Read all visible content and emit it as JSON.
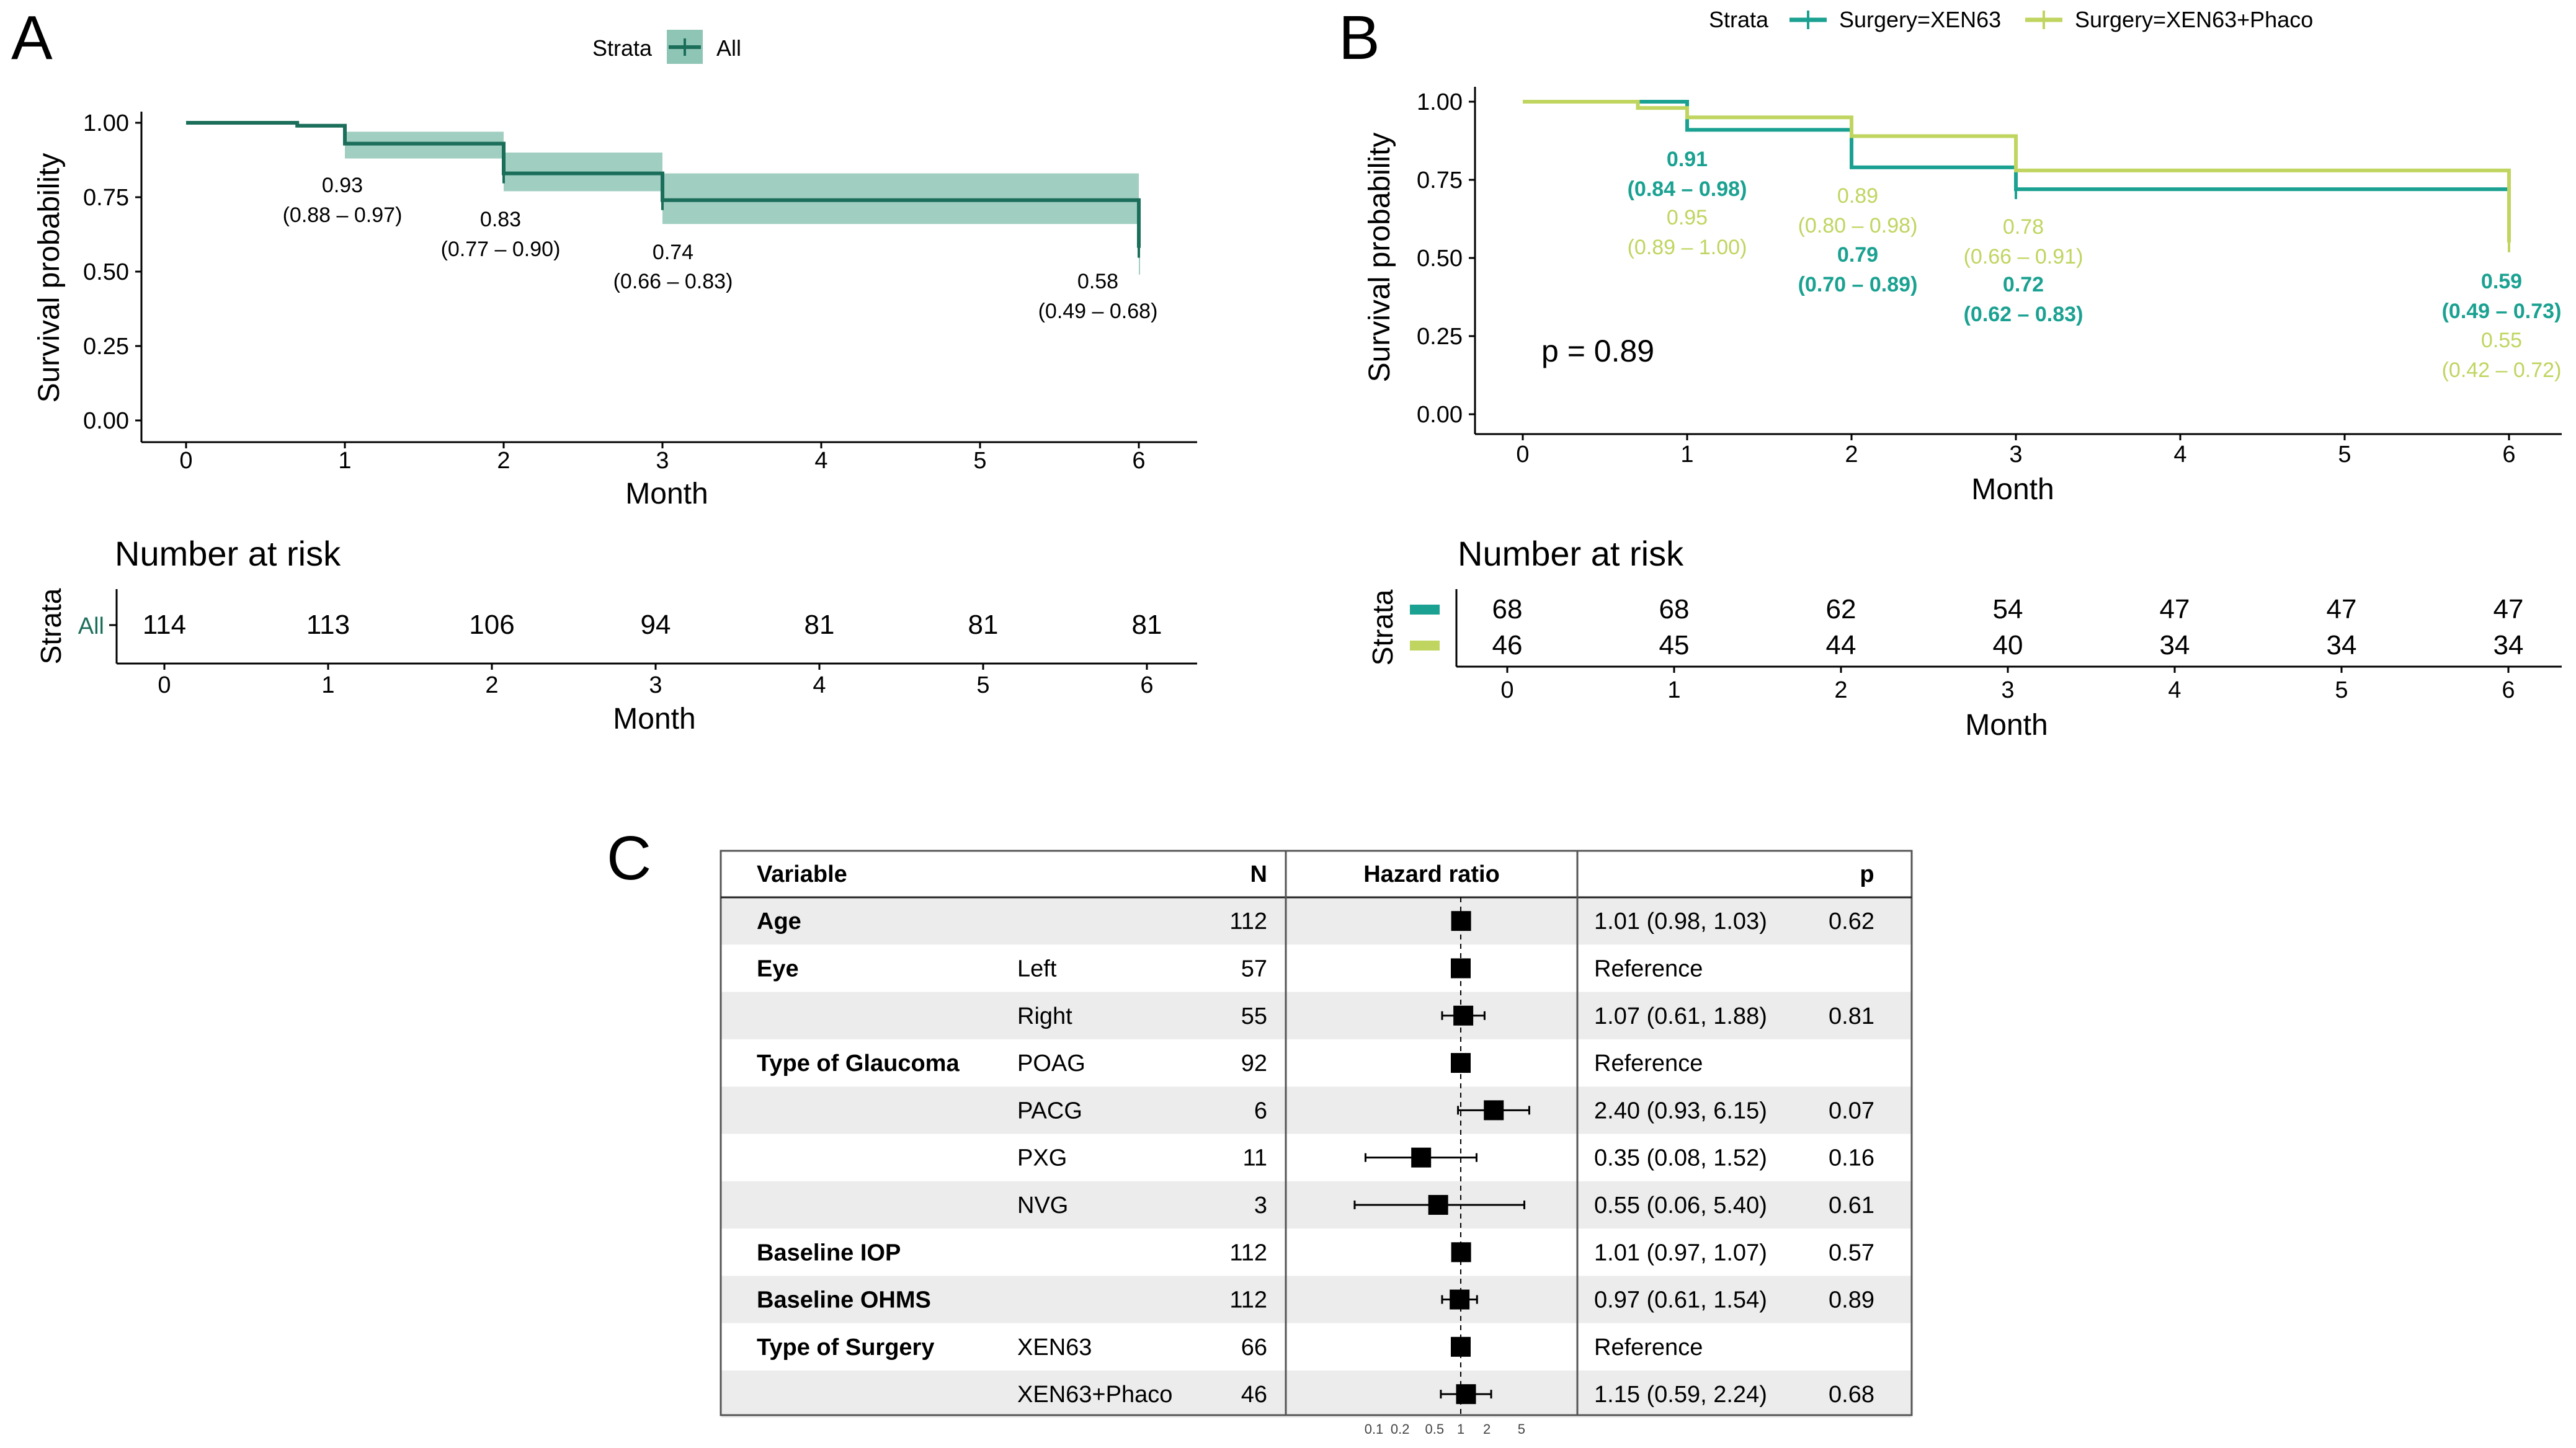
{
  "panels": {
    "a": "A",
    "b": "B",
    "c": "C"
  },
  "colors": {
    "all": "#1b6e5a",
    "all_band": "#8fc5b5",
    "xen": "#1aa191",
    "phaco": "#bfd560",
    "row_shade": "#ececec"
  },
  "chart_data": [
    {
      "type": "line",
      "subtype": "kaplan-meier",
      "panel": "A",
      "legend_title": "Strata",
      "legend_labels": [
        "All"
      ],
      "legend_placement": "top",
      "xlabel": "Month",
      "ylabel": "Survival probability",
      "xlim": [
        0,
        6
      ],
      "ylim": [
        0,
        1
      ],
      "x_ticks": [
        "0",
        "1",
        "2",
        "3",
        "4",
        "5",
        "6"
      ],
      "y_ticks": [
        "0.00",
        "0.25",
        "0.50",
        "0.75",
        "1.00"
      ],
      "series": [
        {
          "name": "All",
          "steps": [
            [
              0,
              1.0
            ],
            [
              0.7,
              0.99
            ],
            [
              1,
              0.93
            ],
            [
              2,
              0.83
            ],
            [
              3,
              0.74
            ],
            [
              6,
              0.58
            ]
          ],
          "ci_upper": [
            [
              1,
              0.97
            ],
            [
              2,
              0.9
            ],
            [
              3,
              0.83
            ],
            [
              6,
              0.68
            ]
          ],
          "ci_lower": [
            [
              1,
              0.88
            ],
            [
              2,
              0.77
            ],
            [
              3,
              0.66
            ],
            [
              6,
              0.49
            ]
          ],
          "censor_marks": [
            [
              2,
              0.83
            ],
            [
              3,
              0.74
            ],
            [
              6,
              0.58
            ]
          ]
        }
      ],
      "annotations": [
        {
          "x": 1,
          "y": 0.93,
          "value": "0.93",
          "ci": "(0.88 – 0.97)"
        },
        {
          "x": 2,
          "y": 0.83,
          "value": "0.83",
          "ci": "(0.77 – 0.90)"
        },
        {
          "x": 3,
          "y": 0.74,
          "value": "0.74",
          "ci": "(0.66 – 0.83)"
        },
        {
          "x": 6,
          "y": 0.58,
          "value": "0.58",
          "ci": "(0.49 – 0.68)"
        }
      ],
      "risk_table": {
        "title": "Number at risk",
        "ylabel": "Strata",
        "xlabel": "Month",
        "x_ticks": [
          "0",
          "1",
          "2",
          "3",
          "4",
          "5",
          "6"
        ],
        "rows": [
          {
            "label": "All",
            "values": [
              "114",
              "113",
              "106",
              "94",
              "81",
              "81",
              "81"
            ]
          }
        ]
      }
    },
    {
      "type": "line",
      "subtype": "kaplan-meier",
      "panel": "B",
      "legend_title": "Strata",
      "legend_labels": [
        "Surgery=XEN63",
        "Surgery=XEN63+Phaco"
      ],
      "legend_placement": "top",
      "xlabel": "Month",
      "ylabel": "Survival probability",
      "xlim": [
        0,
        6
      ],
      "ylim": [
        0,
        1
      ],
      "x_ticks": [
        "0",
        "1",
        "2",
        "3",
        "4",
        "5",
        "6"
      ],
      "y_ticks": [
        "0.00",
        "0.25",
        "0.50",
        "0.75",
        "1.00"
      ],
      "pvalue": "p = 0.89",
      "series": [
        {
          "name": "Surgery=XEN63",
          "steps": [
            [
              0,
              1.0
            ],
            [
              1,
              0.91
            ],
            [
              2,
              0.79
            ],
            [
              3,
              0.72
            ],
            [
              6,
              0.59
            ]
          ],
          "censor_marks": [
            [
              3,
              0.72
            ],
            [
              6,
              0.59
            ]
          ]
        },
        {
          "name": "Surgery=XEN63+Phaco",
          "steps": [
            [
              0,
              1.0
            ],
            [
              0.7,
              0.98
            ],
            [
              1,
              0.95
            ],
            [
              2,
              0.89
            ],
            [
              3,
              0.78
            ],
            [
              6,
              0.55
            ]
          ],
          "censor_marks": [
            [
              6,
              0.55
            ]
          ]
        }
      ],
      "annotations": [
        {
          "series": 0,
          "value": "0.91",
          "ci": "(0.84 – 0.98)"
        },
        {
          "series": 1,
          "value": "0.95",
          "ci": "(0.89 – 1.00)"
        },
        {
          "series": 1,
          "value": "0.89",
          "ci": "(0.80 – 0.98)"
        },
        {
          "series": 0,
          "value": "0.79",
          "ci": "(0.70 – 0.89)"
        },
        {
          "series": 1,
          "value": "0.78",
          "ci": "(0.66 – 0.91)"
        },
        {
          "series": 0,
          "value": "0.72",
          "ci": "(0.62 – 0.83)"
        },
        {
          "series": 0,
          "value": "0.59",
          "ci": "(0.49 – 0.73)"
        },
        {
          "series": 1,
          "value": "0.55",
          "ci": "(0.42 – 0.72)"
        }
      ],
      "risk_table": {
        "title": "Number at risk",
        "ylabel": "Strata",
        "xlabel": "Month",
        "x_ticks": [
          "0",
          "1",
          "2",
          "3",
          "4",
          "5",
          "6"
        ],
        "rows": [
          {
            "series": 0,
            "values": [
              "68",
              "68",
              "62",
              "54",
              "47",
              "47",
              "47"
            ]
          },
          {
            "series": 1,
            "values": [
              "46",
              "45",
              "44",
              "40",
              "34",
              "34",
              "34"
            ]
          }
        ]
      }
    },
    {
      "type": "forest",
      "panel": "C",
      "headers": {
        "variable": "Variable",
        "n": "N",
        "hr": "Hazard ratio",
        "p": "p"
      },
      "x_scale": "log",
      "x_ticks": [
        "0.1",
        "0.2",
        "0.5",
        "1",
        "2",
        "5"
      ],
      "reference_line": 1,
      "rows": [
        {
          "variable": "Age",
          "level": "",
          "n": "112",
          "hr": 1.01,
          "lo": 0.98,
          "hi": 1.03,
          "text": "1.01 (0.98, 1.03)",
          "p": "0.62"
        },
        {
          "variable": "Eye",
          "level": "Left",
          "n": "57",
          "hr": 1.0,
          "text": "Reference",
          "p": ""
        },
        {
          "variable": "",
          "level": "Right",
          "n": "55",
          "hr": 1.07,
          "lo": 0.61,
          "hi": 1.88,
          "text": "1.07 (0.61, 1.88)",
          "p": "0.81"
        },
        {
          "variable": "Type of Glaucoma",
          "level": "POAG",
          "n": "92",
          "hr": 1.0,
          "text": "Reference",
          "p": ""
        },
        {
          "variable": "",
          "level": "PACG",
          "n": "6",
          "hr": 2.4,
          "lo": 0.93,
          "hi": 6.15,
          "text": "2.40 (0.93, 6.15)",
          "p": "0.07"
        },
        {
          "variable": "",
          "level": "PXG",
          "n": "11",
          "hr": 0.35,
          "lo": 0.08,
          "hi": 1.52,
          "text": "0.35 (0.08, 1.52)",
          "p": "0.16"
        },
        {
          "variable": "",
          "level": "NVG",
          "n": "3",
          "hr": 0.55,
          "lo": 0.06,
          "hi": 5.4,
          "text": "0.55 (0.06, 5.40)",
          "p": "0.61"
        },
        {
          "variable": "Baseline IOP",
          "level": "",
          "n": "112",
          "hr": 1.01,
          "lo": 0.97,
          "hi": 1.07,
          "text": "1.01 (0.97, 1.07)",
          "p": "0.57"
        },
        {
          "variable": "Baseline OHMS",
          "level": "",
          "n": "112",
          "hr": 0.97,
          "lo": 0.61,
          "hi": 1.54,
          "text": "0.97 (0.61, 1.54)",
          "p": "0.89"
        },
        {
          "variable": "Type of Surgery",
          "level": "XEN63",
          "n": "66",
          "hr": 1.0,
          "text": "Reference",
          "p": ""
        },
        {
          "variable": "",
          "level": "XEN63+Phaco",
          "n": "46",
          "hr": 1.15,
          "lo": 0.59,
          "hi": 2.24,
          "text": "1.15 (0.59, 2.24)",
          "p": "0.68"
        }
      ]
    }
  ]
}
